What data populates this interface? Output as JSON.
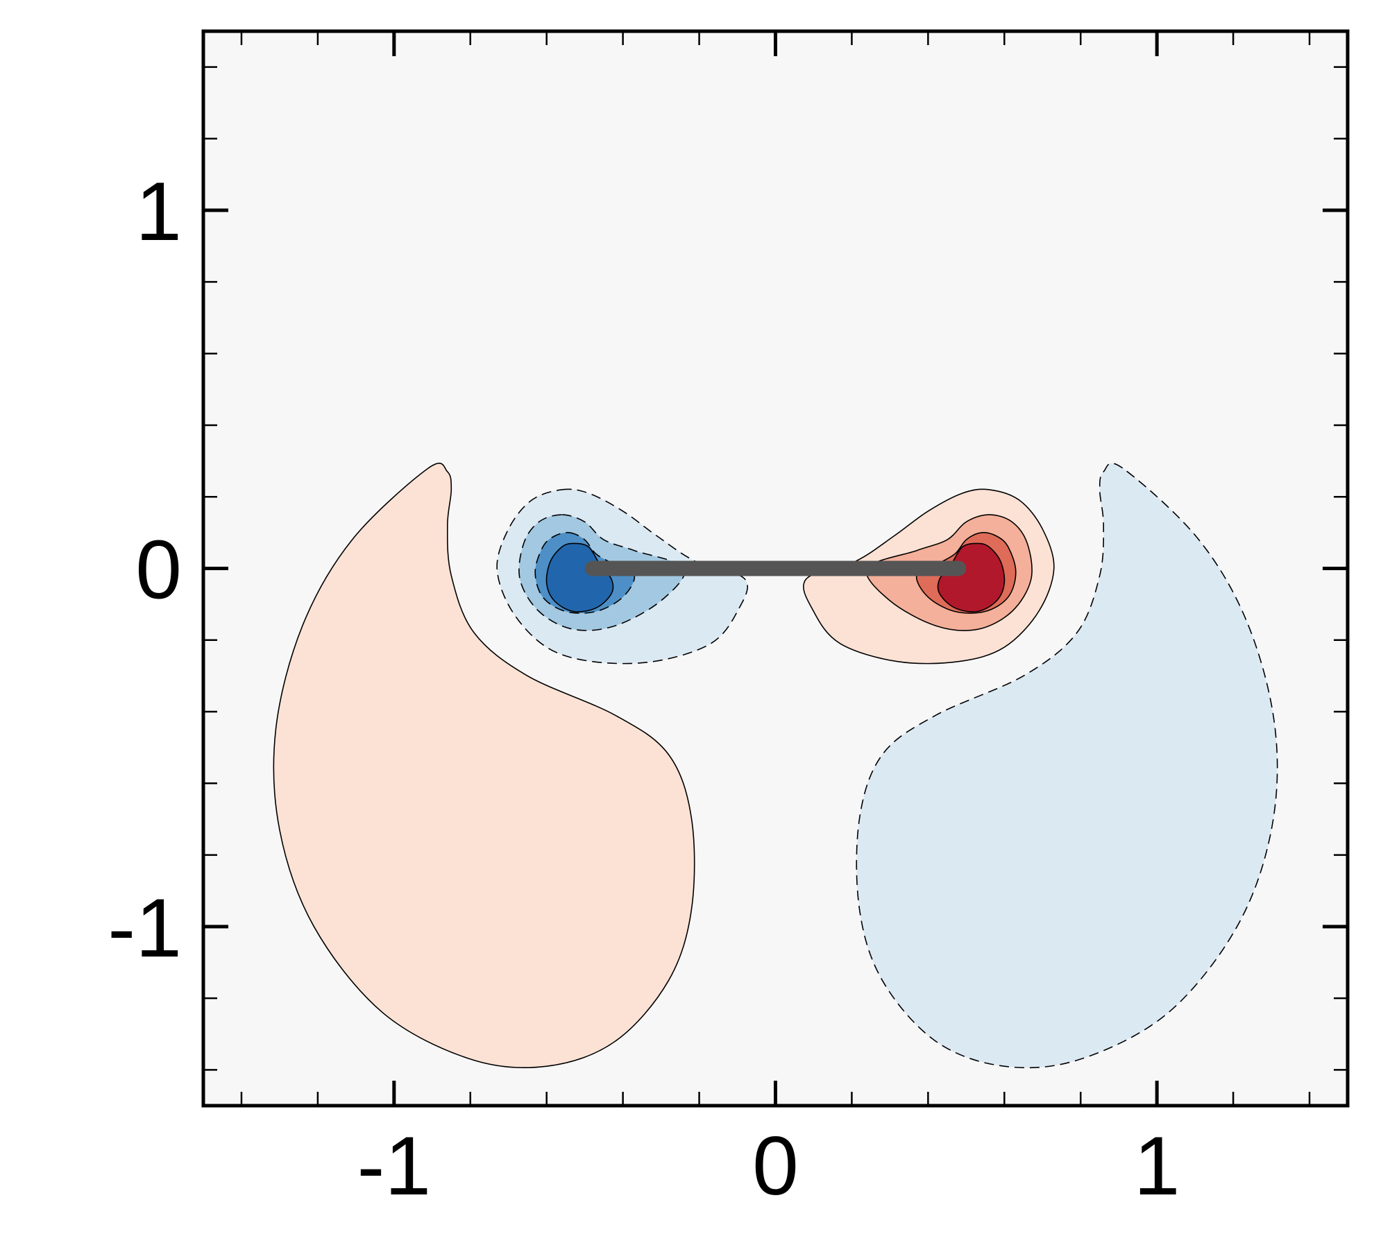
{
  "chart_data": {
    "type": "contour",
    "title": "",
    "xlabel": "",
    "ylabel": "",
    "xlim": [
      -1.5,
      1.5
    ],
    "ylim": [
      -1.5,
      1.5
    ],
    "x_ticks": [
      -1,
      0,
      1
    ],
    "y_ticks": [
      -1,
      0,
      1
    ],
    "x_tick_labels": [
      "-1",
      "0",
      "1"
    ],
    "y_tick_labels": [
      "-1",
      "0",
      "1"
    ],
    "minor_tick_step": 0.2,
    "grid": false,
    "legend": "none",
    "plate": {
      "x": [
        -0.48,
        0.48
      ],
      "y": 0,
      "color": "#555555"
    },
    "colors": {
      "background": "#f7f7f7",
      "neg1": "#dbe9f3",
      "neg2": "#a3c8e1",
      "neg3": "#4d8fc6",
      "neg4": "#2166ac",
      "pos1": "#fbe2d5",
      "pos2": "#f4b09a",
      "pos3": "#de6c58",
      "pos4": "#b2182b"
    },
    "regions": [
      {
        "name": "shed-positive-lobe",
        "level": "pos1",
        "dashed": false,
        "points": [
          [
            -0.91,
            0.28
          ],
          [
            -0.86,
            0.27
          ],
          [
            -0.85,
            0.22
          ],
          [
            -0.86,
            0.12
          ],
          [
            -0.85,
            -0.02
          ],
          [
            -0.79,
            -0.18
          ],
          [
            -0.65,
            -0.3
          ],
          [
            -0.42,
            -0.41
          ],
          [
            -0.28,
            -0.52
          ],
          [
            -0.22,
            -0.7
          ],
          [
            -0.22,
            -0.95
          ],
          [
            -0.28,
            -1.15
          ],
          [
            -0.42,
            -1.32
          ],
          [
            -0.6,
            -1.39
          ],
          [
            -0.8,
            -1.37
          ],
          [
            -1.03,
            -1.24
          ],
          [
            -1.21,
            -1.0
          ],
          [
            -1.3,
            -0.73
          ],
          [
            -1.31,
            -0.45
          ],
          [
            -1.24,
            -0.16
          ],
          [
            -1.11,
            0.08
          ]
        ]
      },
      {
        "name": "shed-negative-lobe",
        "level": "neg1",
        "dashed": true,
        "points": [
          [
            0.91,
            0.28
          ],
          [
            0.86,
            0.27
          ],
          [
            0.85,
            0.22
          ],
          [
            0.86,
            0.12
          ],
          [
            0.85,
            -0.02
          ],
          [
            0.79,
            -0.18
          ],
          [
            0.65,
            -0.3
          ],
          [
            0.42,
            -0.41
          ],
          [
            0.28,
            -0.52
          ],
          [
            0.22,
            -0.7
          ],
          [
            0.22,
            -0.95
          ],
          [
            0.28,
            -1.15
          ],
          [
            0.42,
            -1.32
          ],
          [
            0.6,
            -1.39
          ],
          [
            0.8,
            -1.37
          ],
          [
            1.03,
            -1.24
          ],
          [
            1.21,
            -1.0
          ],
          [
            1.3,
            -0.73
          ],
          [
            1.31,
            -0.45
          ],
          [
            1.24,
            -0.16
          ],
          [
            1.11,
            0.08
          ]
        ]
      },
      {
        "name": "left-vortex-level-1",
        "level": "neg1",
        "dashed": true,
        "points": [
          [
            -0.56,
            0.22
          ],
          [
            -0.49,
            0.21
          ],
          [
            -0.4,
            0.16
          ],
          [
            -0.31,
            0.09
          ],
          [
            -0.21,
            0.02
          ],
          [
            -0.08,
            -0.03
          ],
          [
            -0.1,
            -0.12
          ],
          [
            -0.17,
            -0.21
          ],
          [
            -0.32,
            -0.26
          ],
          [
            -0.48,
            -0.26
          ],
          [
            -0.6,
            -0.22
          ],
          [
            -0.69,
            -0.12
          ],
          [
            -0.73,
            0.0
          ],
          [
            -0.7,
            0.11
          ],
          [
            -0.64,
            0.19
          ]
        ]
      },
      {
        "name": "left-vortex-level-2",
        "level": "neg2",
        "dashed": true,
        "points": [
          [
            -0.56,
            0.15
          ],
          [
            -0.5,
            0.13
          ],
          [
            -0.45,
            0.08
          ],
          [
            -0.37,
            0.05
          ],
          [
            -0.24,
            0.0
          ],
          [
            -0.3,
            -0.09
          ],
          [
            -0.42,
            -0.16
          ],
          [
            -0.53,
            -0.17
          ],
          [
            -0.62,
            -0.12
          ],
          [
            -0.67,
            -0.03
          ],
          [
            -0.66,
            0.07
          ],
          [
            -0.62,
            0.13
          ]
        ]
      },
      {
        "name": "left-vortex-level-3",
        "level": "neg3",
        "dashed": true,
        "points": [
          [
            -0.54,
            0.1
          ],
          [
            -0.5,
            0.08
          ],
          [
            -0.47,
            0.04
          ],
          [
            -0.42,
            0.01
          ],
          [
            -0.37,
            -0.02
          ],
          [
            -0.4,
            -0.08
          ],
          [
            -0.47,
            -0.12
          ],
          [
            -0.55,
            -0.12
          ],
          [
            -0.61,
            -0.08
          ],
          [
            -0.63,
            -0.01
          ],
          [
            -0.61,
            0.06
          ],
          [
            -0.58,
            0.09
          ]
        ]
      },
      {
        "name": "left-vortex-core",
        "level": "neg4",
        "dashed": false,
        "points": [
          [
            -0.53,
            0.07
          ],
          [
            -0.49,
            0.06
          ],
          [
            -0.46,
            0.01
          ],
          [
            -0.43,
            -0.03
          ],
          [
            -0.43,
            -0.07
          ],
          [
            -0.47,
            -0.11
          ],
          [
            -0.53,
            -0.12
          ],
          [
            -0.58,
            -0.09
          ],
          [
            -0.6,
            -0.04
          ],
          [
            -0.59,
            0.02
          ],
          [
            -0.56,
            0.06
          ]
        ]
      },
      {
        "name": "right-vortex-level-1",
        "level": "pos1",
        "dashed": false,
        "points": [
          [
            0.56,
            0.22
          ],
          [
            0.49,
            0.21
          ],
          [
            0.4,
            0.16
          ],
          [
            0.31,
            0.09
          ],
          [
            0.21,
            0.02
          ],
          [
            0.08,
            -0.03
          ],
          [
            0.1,
            -0.12
          ],
          [
            0.17,
            -0.21
          ],
          [
            0.32,
            -0.26
          ],
          [
            0.48,
            -0.26
          ],
          [
            0.6,
            -0.22
          ],
          [
            0.69,
            -0.12
          ],
          [
            0.73,
            0.0
          ],
          [
            0.7,
            0.11
          ],
          [
            0.64,
            0.19
          ]
        ]
      },
      {
        "name": "right-vortex-level-2",
        "level": "pos2",
        "dashed": false,
        "points": [
          [
            0.56,
            0.15
          ],
          [
            0.5,
            0.13
          ],
          [
            0.45,
            0.08
          ],
          [
            0.37,
            0.05
          ],
          [
            0.24,
            0.0
          ],
          [
            0.3,
            -0.09
          ],
          [
            0.42,
            -0.16
          ],
          [
            0.53,
            -0.17
          ],
          [
            0.62,
            -0.12
          ],
          [
            0.67,
            -0.03
          ],
          [
            0.66,
            0.07
          ],
          [
            0.62,
            0.13
          ]
        ]
      },
      {
        "name": "right-vortex-level-3",
        "level": "pos3",
        "dashed": false,
        "points": [
          [
            0.54,
            0.1
          ],
          [
            0.5,
            0.08
          ],
          [
            0.47,
            0.04
          ],
          [
            0.42,
            0.01
          ],
          [
            0.37,
            -0.02
          ],
          [
            0.4,
            -0.08
          ],
          [
            0.47,
            -0.12
          ],
          [
            0.55,
            -0.12
          ],
          [
            0.61,
            -0.08
          ],
          [
            0.63,
            -0.01
          ],
          [
            0.61,
            0.06
          ],
          [
            0.58,
            0.09
          ]
        ]
      },
      {
        "name": "right-vortex-core",
        "level": "pos4",
        "dashed": false,
        "points": [
          [
            0.53,
            0.07
          ],
          [
            0.49,
            0.06
          ],
          [
            0.46,
            0.01
          ],
          [
            0.43,
            -0.03
          ],
          [
            0.43,
            -0.07
          ],
          [
            0.47,
            -0.11
          ],
          [
            0.53,
            -0.12
          ],
          [
            0.58,
            -0.09
          ],
          [
            0.6,
            -0.04
          ],
          [
            0.59,
            0.02
          ],
          [
            0.56,
            0.06
          ]
        ]
      }
    ]
  }
}
